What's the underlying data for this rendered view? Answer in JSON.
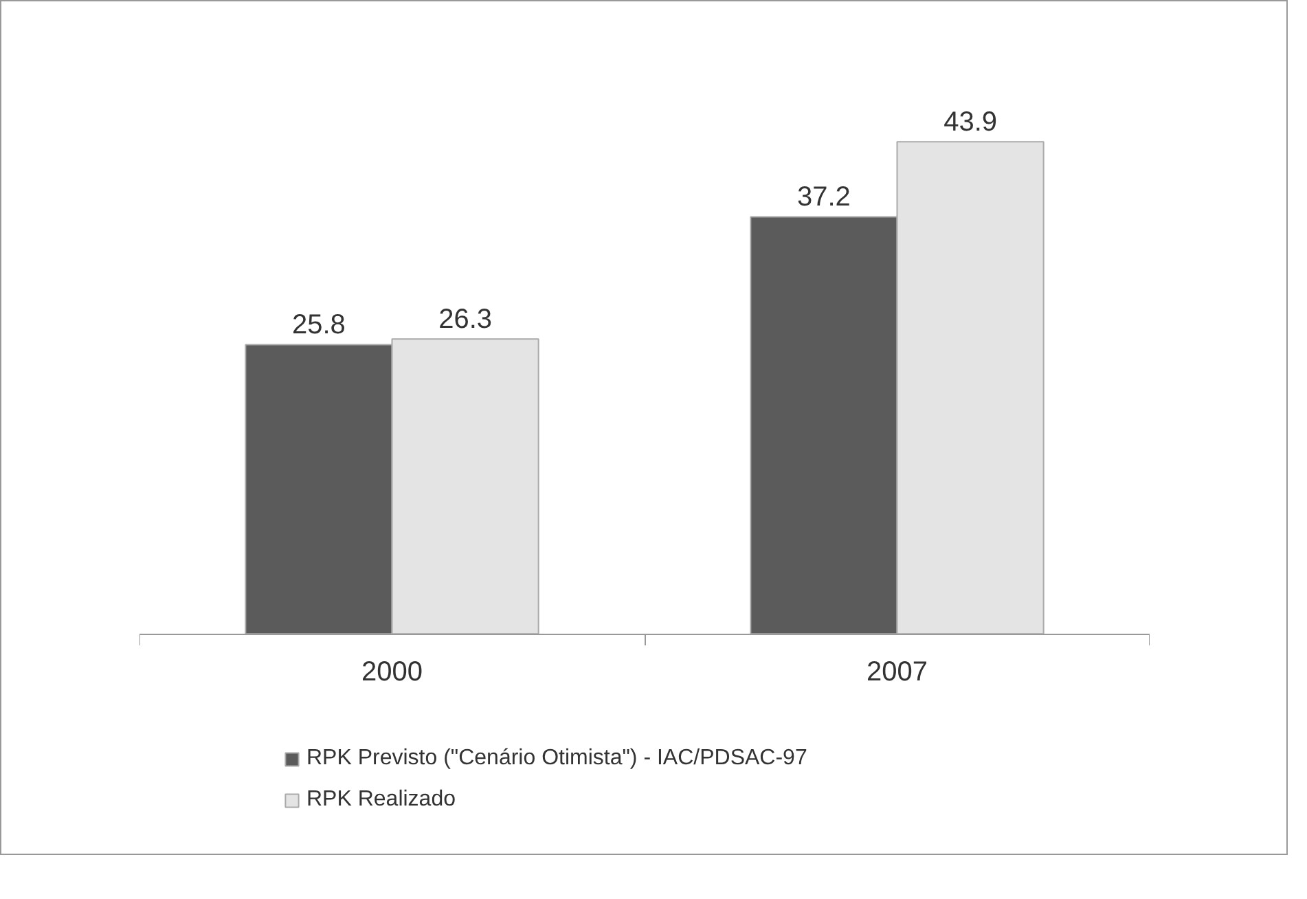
{
  "chart_data": {
    "type": "bar",
    "categories": [
      "2000",
      "2007"
    ],
    "series": [
      {
        "name": "RPK Previsto (\"Cenário Otimista\") - IAC/PDSAC-97",
        "color": "#5b5b5b",
        "values": [
          25.8,
          37.2
        ]
      },
      {
        "name": "RPK Realizado",
        "color": "#e4e4e4",
        "values": [
          26.3,
          43.9
        ]
      }
    ],
    "data_labels": true,
    "legend": "bottom"
  }
}
